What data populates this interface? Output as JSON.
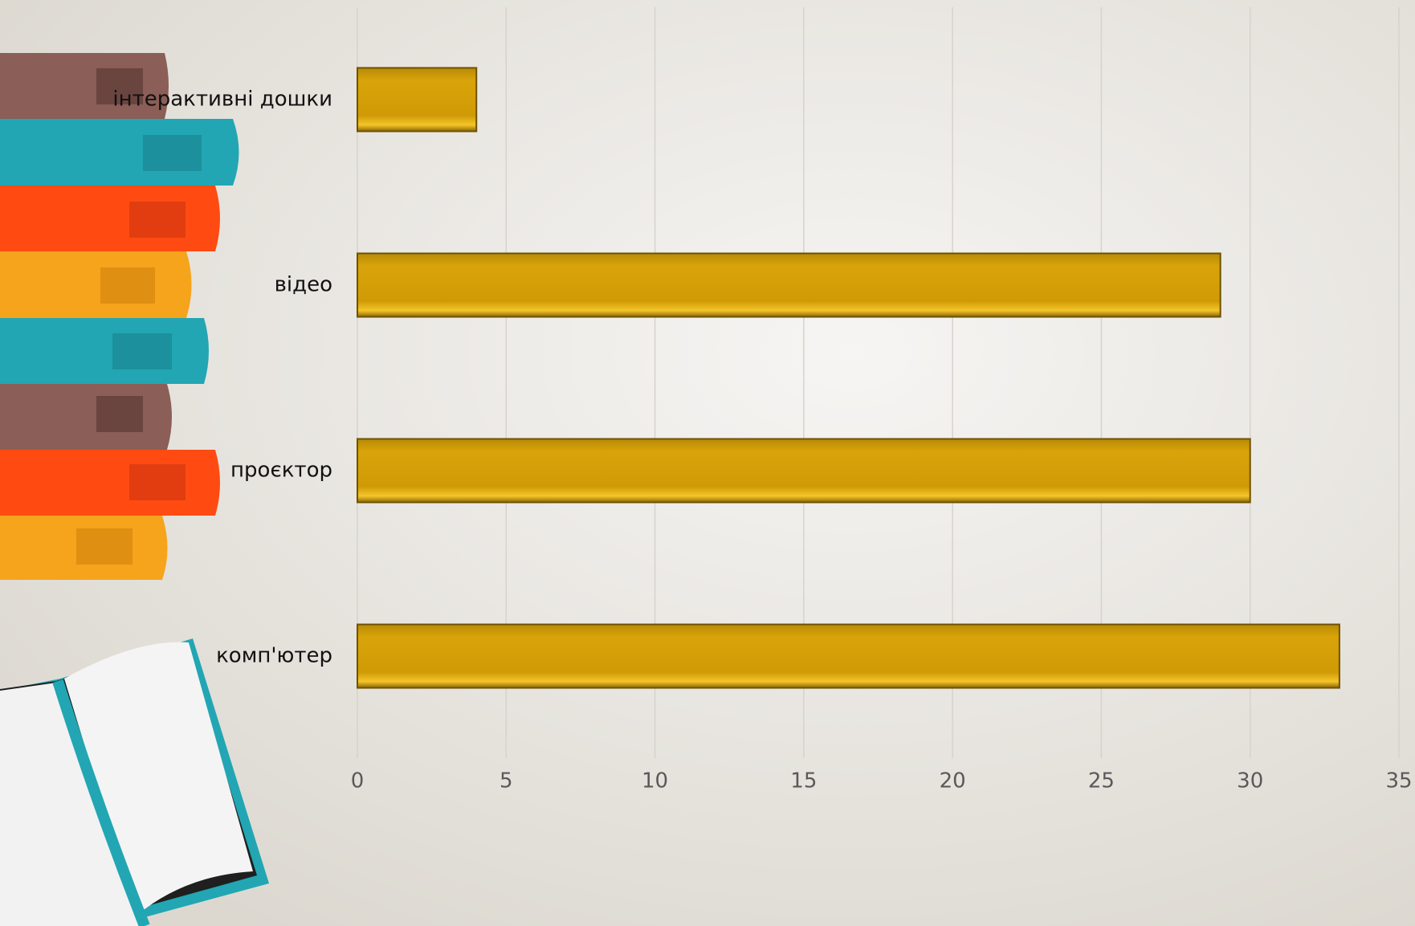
{
  "chart_data": {
    "type": "hbar",
    "categories": [
      "інтерактивні дошки",
      "відео",
      "проєктор",
      "комп'ютер"
    ],
    "values": [
      4,
      29,
      30,
      33
    ],
    "color": "#d4a20a",
    "xlim": [
      0,
      35
    ],
    "xticks": [
      0,
      5,
      10,
      15,
      20,
      25,
      30,
      35
    ],
    "grid": true
  }
}
